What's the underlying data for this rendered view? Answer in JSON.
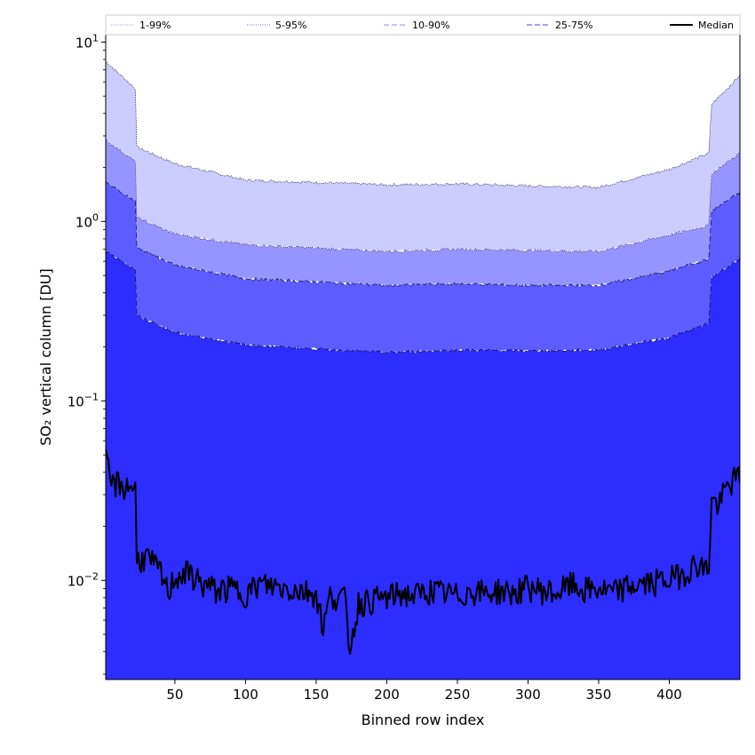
{
  "chart_data": {
    "type": "area",
    "xlabel": "Binned row index",
    "ylabel": "SO₂ vertical column [DU]",
    "xlim": [
      1,
      450
    ],
    "ylim": [
      0.0028,
      11
    ],
    "yscale": "log",
    "x_ticks": [
      50,
      100,
      150,
      200,
      250,
      300,
      350,
      400
    ],
    "y_ticks": [
      {
        "value": 0.01,
        "base": "10",
        "exp": "−2"
      },
      {
        "value": 0.1,
        "base": "10",
        "exp": "−1"
      },
      {
        "value": 1,
        "base": "10",
        "exp": "0"
      },
      {
        "value": 10,
        "base": "10",
        "exp": "1"
      }
    ],
    "grid": false,
    "legend_position": "top",
    "x_anchor": [
      1,
      22,
      23,
      50,
      100,
      150,
      200,
      250,
      300,
      350,
      400,
      428,
      430,
      450
    ],
    "bands": [
      {
        "name": "1-99%",
        "color": "#ccccff",
        "line": "#aaaadd",
        "dash": "1,1",
        "upper": [
          7.8,
          5.5,
          2.6,
          2.1,
          1.7,
          1.65,
          1.6,
          1.62,
          1.58,
          1.55,
          1.95,
          2.4,
          4.5,
          6.5
        ],
        "lower": [
          2.85,
          2.15,
          1.05,
          0.85,
          0.74,
          0.71,
          0.68,
          0.7,
          0.69,
          0.68,
          0.84,
          0.95,
          1.85,
          2.4
        ]
      },
      {
        "name": "5-95%",
        "color": "#9595ff",
        "line": "#6666cc",
        "dash": "1,1.5",
        "upper": [
          2.85,
          2.15,
          1.05,
          0.85,
          0.74,
          0.71,
          0.68,
          0.7,
          0.69,
          0.68,
          0.84,
          0.95,
          1.85,
          2.4
        ],
        "lower": [
          1.65,
          1.3,
          0.72,
          0.57,
          0.48,
          0.46,
          0.44,
          0.45,
          0.44,
          0.44,
          0.53,
          0.62,
          1.15,
          1.45
        ]
      },
      {
        "name": "10-90%",
        "color": "#5c5cff",
        "line": "#8888ff",
        "dash": "6,3",
        "upper": [
          1.65,
          1.3,
          0.72,
          0.57,
          0.48,
          0.46,
          0.44,
          0.45,
          0.44,
          0.44,
          0.53,
          0.62,
          1.15,
          1.45
        ],
        "lower": [
          0.68,
          0.54,
          0.3,
          0.24,
          0.205,
          0.195,
          0.186,
          0.192,
          0.19,
          0.192,
          0.225,
          0.27,
          0.49,
          0.62
        ]
      },
      {
        "name": "25-75%",
        "color": "#2d2dff",
        "line": "#4444ff",
        "dash": "6,3",
        "upper": [
          0.68,
          0.54,
          0.3,
          0.24,
          0.205,
          0.195,
          0.186,
          0.192,
          0.19,
          0.192,
          0.225,
          0.27,
          0.49,
          0.62
        ],
        "lower": [
          0.0028,
          0.0028,
          0.0028,
          0.0028,
          0.0028,
          0.0028,
          0.0028,
          0.0028,
          0.0028,
          0.0028,
          0.0028,
          0.0028,
          0.0028,
          0.0028
        ]
      }
    ],
    "median": {
      "name": "Median",
      "color": "#000000",
      "x": [
        1,
        5,
        10,
        15,
        20,
        22,
        23,
        30,
        40,
        45,
        50,
        60,
        70,
        80,
        90,
        100,
        110,
        120,
        130,
        140,
        150,
        155,
        160,
        170,
        174,
        180,
        190,
        200,
        210,
        220,
        230,
        240,
        250,
        260,
        270,
        280,
        290,
        300,
        310,
        320,
        330,
        340,
        350,
        360,
        370,
        380,
        390,
        400,
        410,
        420,
        425,
        428,
        430,
        435,
        440,
        445,
        450
      ],
      "y": [
        0.046,
        0.034,
        0.035,
        0.033,
        0.034,
        0.032,
        0.013,
        0.0135,
        0.011,
        0.0085,
        0.0105,
        0.011,
        0.0095,
        0.0088,
        0.009,
        0.0085,
        0.0095,
        0.0093,
        0.009,
        0.0088,
        0.0085,
        0.0055,
        0.0082,
        0.008,
        0.0042,
        0.0075,
        0.0078,
        0.008,
        0.0085,
        0.0082,
        0.0088,
        0.0085,
        0.0082,
        0.0088,
        0.0085,
        0.0088,
        0.0085,
        0.0092,
        0.0088,
        0.0085,
        0.0095,
        0.0088,
        0.009,
        0.0085,
        0.0092,
        0.0095,
        0.0098,
        0.0102,
        0.011,
        0.0125,
        0.0115,
        0.012,
        0.028,
        0.026,
        0.032,
        0.036,
        0.038
      ]
    }
  }
}
